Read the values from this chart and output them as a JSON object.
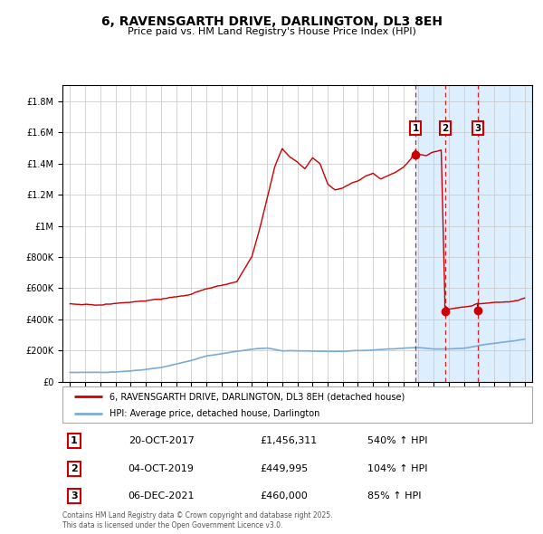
{
  "title": "6, RAVENSGARTH DRIVE, DARLINGTON, DL3 8EH",
  "subtitle": "Price paid vs. HM Land Registry's House Price Index (HPI)",
  "legend_line1": "6, RAVENSGARTH DRIVE, DARLINGTON, DL3 8EH (detached house)",
  "legend_line2": "HPI: Average price, detached house, Darlington",
  "footnote": "Contains HM Land Registry data © Crown copyright and database right 2025.\nThis data is licensed under the Open Government Licence v3.0.",
  "transactions": [
    {
      "label": "1",
      "date": "20-OCT-2017",
      "price": 1456311,
      "pct": "540%",
      "x": 2017.8
    },
    {
      "label": "2",
      "date": "04-OCT-2019",
      "price": 449995,
      "pct": "104%",
      "x": 2019.75
    },
    {
      "label": "3",
      "date": "06-DEC-2021",
      "price": 460000,
      "pct": "85%",
      "x": 2021.92
    }
  ],
  "hpi_line_color": "#7aacd6",
  "price_line_color": "#cc0000",
  "background_color": "#ffffff",
  "plot_bg_color": "#ffffff",
  "grid_color": "#cccccc",
  "shade_color": "#ddeeff",
  "ylim": [
    0,
    1900000
  ],
  "xlim_start": 1994.5,
  "xlim_end": 2025.5,
  "table_rows": [
    {
      "num": "1",
      "date": "20-OCT-2017",
      "price": "£1,456,311",
      "pct": "540% ↑ HPI"
    },
    {
      "num": "2",
      "date": "04-OCT-2019",
      "price": "£449,995",
      "pct": "104% ↑ HPI"
    },
    {
      "num": "3",
      "date": "06-DEC-2021",
      "price": "£460,000",
      "pct": "85% ↑ HPI"
    }
  ]
}
